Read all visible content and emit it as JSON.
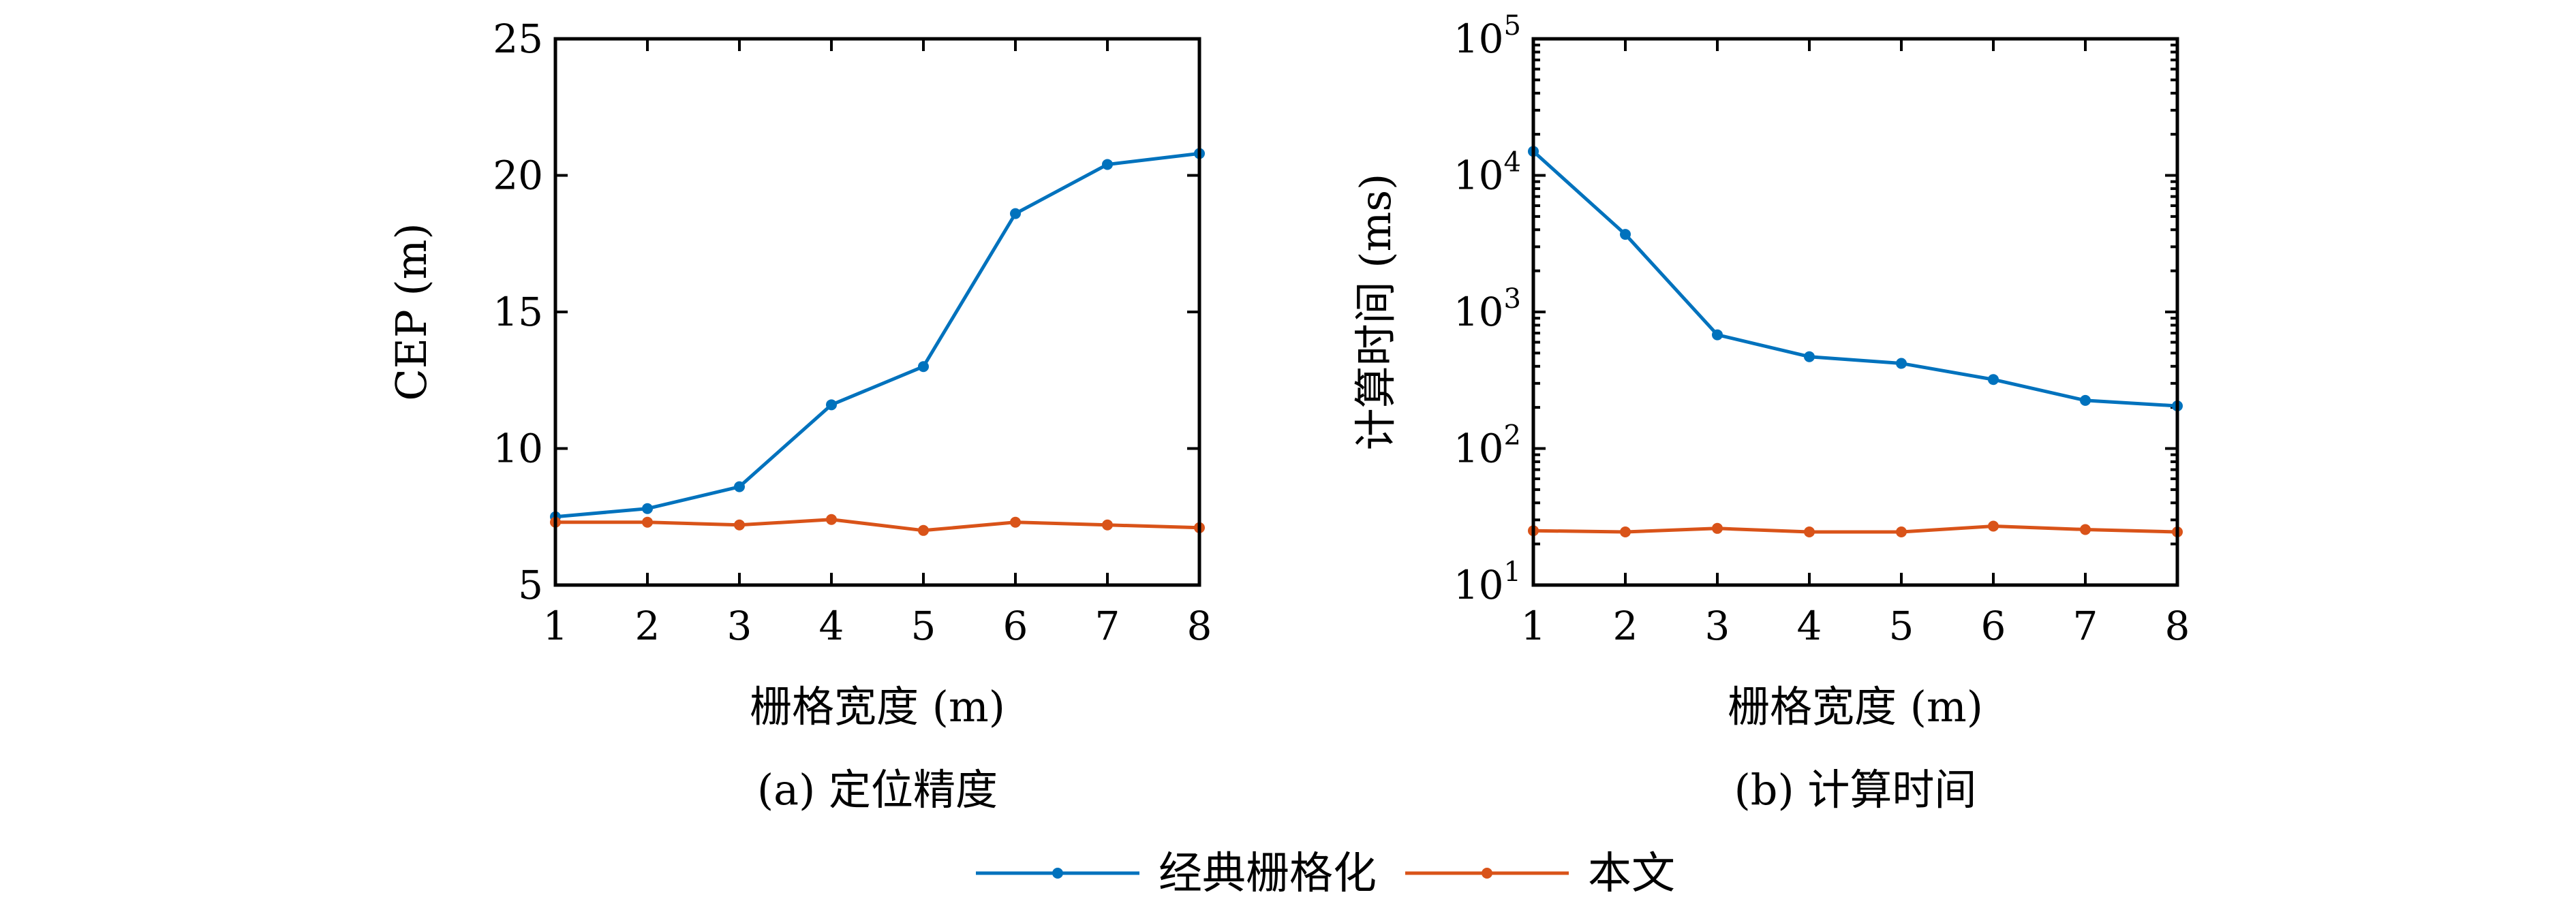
{
  "colors": {
    "classic": "#0072BD",
    "ours": "#D95319"
  },
  "legend": {
    "items": [
      {
        "label": "经典栅格化",
        "color": "#0072BD"
      },
      {
        "label": "本文",
        "color": "#D95319"
      }
    ]
  },
  "chart_data": [
    {
      "type": "line",
      "caption": "(a) 定位精度",
      "xlabel": "栅格宽度 (m)",
      "ylabel": "CEP (m)",
      "xlim": [
        1,
        8
      ],
      "ylim": [
        5,
        25
      ],
      "yscale": "linear",
      "grid": false,
      "xticks": [
        1,
        2,
        3,
        4,
        5,
        6,
        7,
        8
      ],
      "xtick_labels": [
        "1",
        "2",
        "3",
        "4",
        "5",
        "6",
        "7",
        "8"
      ],
      "yticks": [
        5,
        10,
        15,
        20,
        25
      ],
      "ytick_labels": [
        "5",
        "10",
        "15",
        "20",
        "25"
      ],
      "x": [
        1,
        2,
        3,
        4,
        5,
        6,
        7,
        8
      ],
      "series": [
        {
          "name": "经典栅格化",
          "color": "#0072BD",
          "values": [
            7.5,
            7.8,
            8.6,
            11.6,
            13.0,
            18.6,
            20.4,
            20.8
          ]
        },
        {
          "name": "本文",
          "color": "#D95319",
          "values": [
            7.3,
            7.3,
            7.2,
            7.4,
            7.0,
            7.3,
            7.2,
            7.1
          ]
        }
      ]
    },
    {
      "type": "line",
      "caption": "(b) 计算时间",
      "xlabel": "栅格宽度 (m)",
      "ylabel": "计算时间 (ms)",
      "xlim": [
        1,
        8
      ],
      "ylim": [
        10,
        100000
      ],
      "yscale": "log",
      "grid": false,
      "xticks": [
        1,
        2,
        3,
        4,
        5,
        6,
        7,
        8
      ],
      "xtick_labels": [
        "1",
        "2",
        "3",
        "4",
        "5",
        "6",
        "7",
        "8"
      ],
      "yticks": [
        10,
        100,
        1000,
        10000,
        100000
      ],
      "ytick_labels": [
        {
          "base": "10",
          "exp": "1"
        },
        {
          "base": "10",
          "exp": "2"
        },
        {
          "base": "10",
          "exp": "3"
        },
        {
          "base": "10",
          "exp": "4"
        },
        {
          "base": "10",
          "exp": "5"
        }
      ],
      "x": [
        1,
        2,
        3,
        4,
        5,
        6,
        7,
        8
      ],
      "series": [
        {
          "name": "经典栅格化",
          "color": "#0072BD",
          "values": [
            15000,
            3700,
            680,
            470,
            420,
            320,
            225,
            205
          ]
        },
        {
          "name": "本文",
          "color": "#D95319",
          "values": [
            25,
            24.5,
            26,
            24.5,
            24.5,
            27,
            25.5,
            24.5
          ]
        }
      ]
    }
  ]
}
